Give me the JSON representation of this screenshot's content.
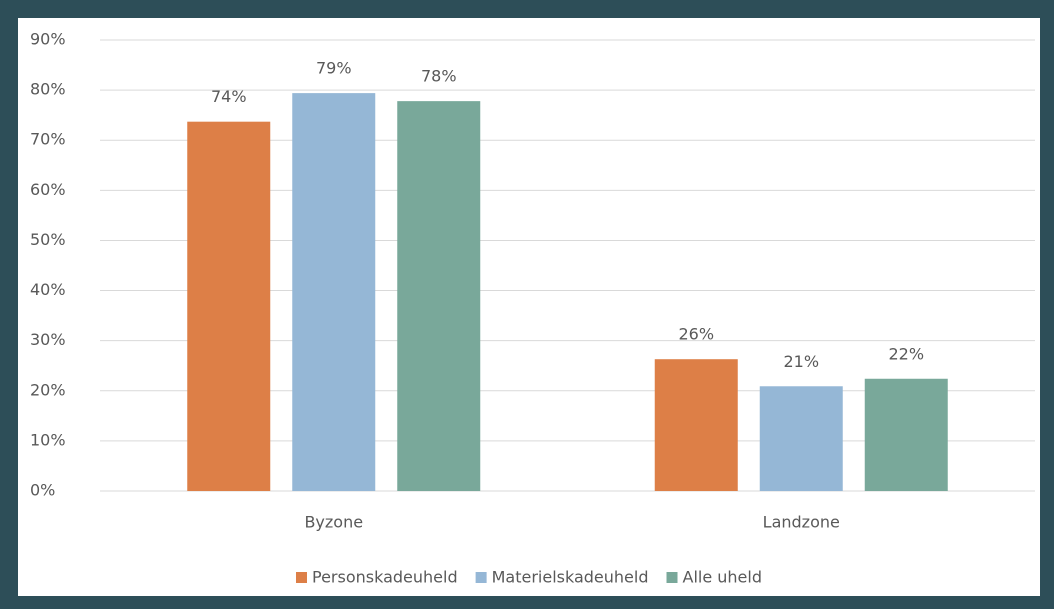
{
  "chart_data": {
    "type": "bar",
    "categories": [
      "Byzone",
      "Landzone"
    ],
    "series": [
      {
        "name": "Personskadeuheld",
        "color": "#dd7f47",
        "values": [
          73.7,
          26.3
        ],
        "value_labels": [
          "74%",
          "26%"
        ]
      },
      {
        "name": "Materielskadeuheld",
        "color": "#95b7d6",
        "values": [
          79.4,
          20.9
        ],
        "value_labels": [
          "79%",
          "21%"
        ]
      },
      {
        "name": "Alle uheld",
        "color": "#79a89a",
        "values": [
          77.8,
          22.4
        ],
        "value_labels": [
          "78%",
          "22%"
        ]
      }
    ],
    "ylim": [
      0,
      90
    ],
    "yticks": [
      {
        "value": 0,
        "label": "0%"
      },
      {
        "value": 10,
        "label": "10%"
      },
      {
        "value": 20,
        "label": "20%"
      },
      {
        "value": 30,
        "label": "30%"
      },
      {
        "value": 40,
        "label": "40%"
      },
      {
        "value": 50,
        "label": "50%"
      },
      {
        "value": 60,
        "label": "60%"
      },
      {
        "value": 70,
        "label": "70%"
      },
      {
        "value": 80,
        "label": "80%"
      },
      {
        "value": 90,
        "label": "90%"
      }
    ],
    "grid": true,
    "legend": "bottom"
  }
}
